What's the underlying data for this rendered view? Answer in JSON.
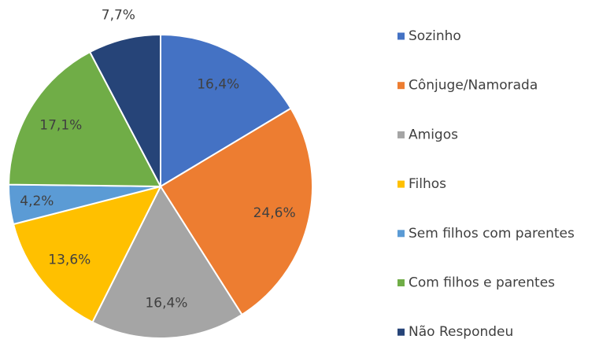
{
  "chart_data": {
    "type": "pie",
    "categories": [
      "Sozinho",
      "Cônjuge/Namorada",
      "Amigos",
      "Filhos",
      "Sem filhos com parentes",
      "Com filhos e parentes",
      "Não Respondeu"
    ],
    "values": [
      16.4,
      24.6,
      16.4,
      13.6,
      4.2,
      17.1,
      7.7
    ],
    "value_labels": [
      "16,4%",
      "24,6%",
      "16,4%",
      "13,6%",
      "4,2%",
      "17,1%",
      "7,7%"
    ],
    "colors": [
      "#4472c4",
      "#ed7d31",
      "#a5a5a5",
      "#ffc000",
      "#5b9bd5",
      "#70ad47",
      "#264478"
    ],
    "legend": "right"
  }
}
